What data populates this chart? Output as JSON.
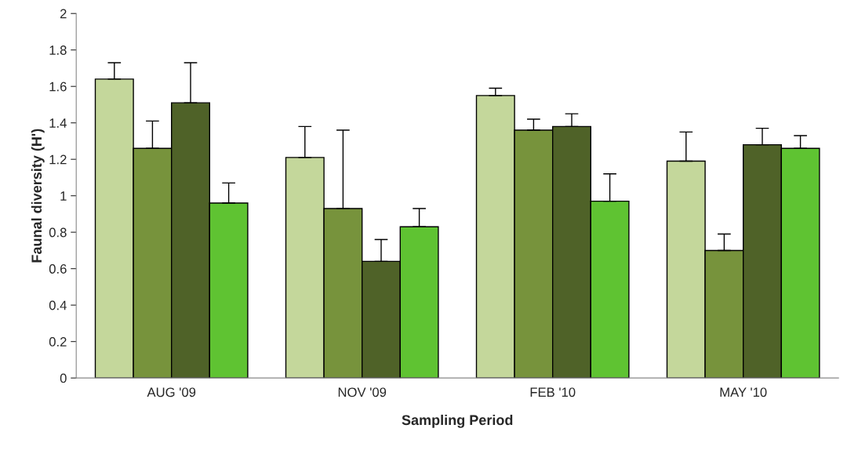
{
  "chart_data": {
    "type": "bar",
    "xlabel": "Sampling Period",
    "ylabel": "Faunal diversity (H')",
    "categories": [
      "AUG '09",
      "NOV '09",
      "FEB '10",
      "MAY '10"
    ],
    "series": [
      {
        "color": "#c4d79b",
        "values": [
          1.64,
          1.21,
          1.55,
          1.19
        ],
        "errors": [
          [
            1.64,
            1.73
          ],
          [
            1.21,
            1.38
          ],
          [
            1.55,
            1.59
          ],
          [
            1.19,
            1.35
          ]
        ]
      },
      {
        "color": "#77933c",
        "values": [
          1.26,
          0.93,
          1.36,
          0.7
        ],
        "errors": [
          [
            1.26,
            1.41
          ],
          [
            0.93,
            1.36
          ],
          [
            1.36,
            1.42
          ],
          [
            0.7,
            0.79
          ]
        ]
      },
      {
        "color": "#4f6228",
        "values": [
          1.51,
          0.64,
          1.38,
          1.28
        ],
        "errors": [
          [
            1.51,
            1.73
          ],
          [
            0.64,
            0.76
          ],
          [
            1.38,
            1.45
          ],
          [
            1.28,
            1.37
          ]
        ]
      },
      {
        "color": "#5fc332",
        "values": [
          0.96,
          0.83,
          0.97,
          1.26
        ],
        "errors": [
          [
            0.96,
            1.07
          ],
          [
            0.83,
            0.93
          ],
          [
            0.97,
            1.12
          ],
          [
            1.26,
            1.33
          ]
        ]
      }
    ],
    "ylim": [
      0,
      2
    ],
    "yticks": [
      0,
      0.2,
      0.4,
      0.6,
      0.8,
      1,
      1.2,
      1.4,
      1.6,
      1.8,
      2
    ],
    "grid": false
  }
}
